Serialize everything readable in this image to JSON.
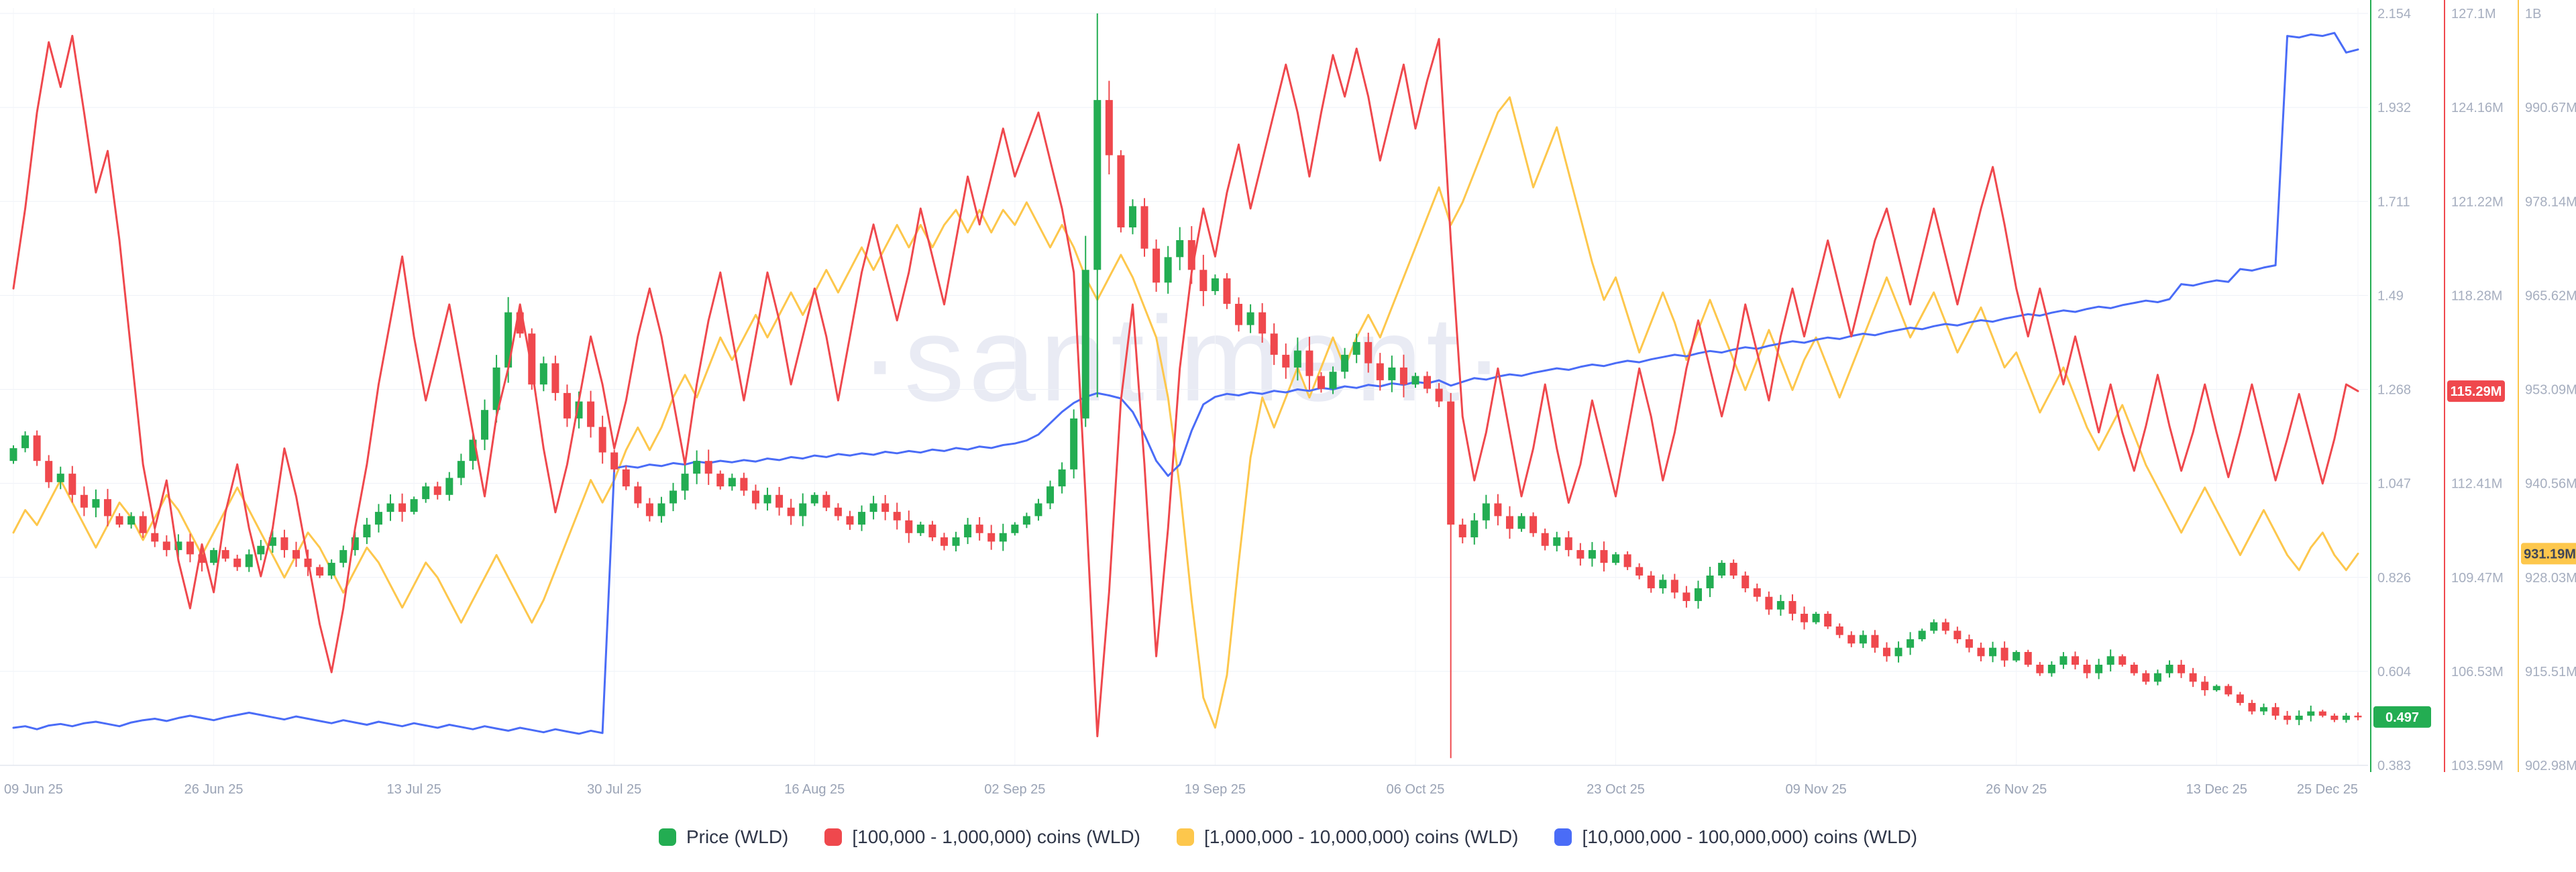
{
  "watermark": {
    "text": "·santiment·"
  },
  "legend": {
    "items": [
      {
        "label": "Price (WLD)",
        "color": "#23ad52"
      },
      {
        "label": "[100,000 - 1,000,000) coins (WLD)",
        "color": "#ef484d"
      },
      {
        "label": "[1,000,000 - 10,000,000) coins (WLD)",
        "color": "#fdc74c"
      },
      {
        "label": "[10,000,000 - 100,000,000) coins (WLD)",
        "color": "#4a6cf7"
      }
    ]
  },
  "colors": {
    "candle_up": "#23ad52",
    "candle_down": "#ef484d",
    "grid": "#eef1f7",
    "axis_baseline": "#e3e7ef",
    "axis_text": "#a6aebf",
    "date_text": "#9aa3b5",
    "watermark": "#e9ebf4"
  },
  "chart_data": {
    "type": "mixed",
    "x_axis": {
      "start_date": "09 Jun 25",
      "end_date": "25 Dec 25",
      "tick_labels": [
        "09 Jun 25",
        "26 Jun 25",
        "13 Jul 25",
        "30 Jul 25",
        "16 Aug 25",
        "02 Sep 25",
        "19 Sep 25",
        "06 Oct 25",
        "23 Oct 25",
        "09 Nov 25",
        "26 Nov 25",
        "13 Dec 25",
        "25 Dec 25"
      ],
      "tick_day_index": [
        0,
        17,
        34,
        51,
        68,
        85,
        102,
        119,
        136,
        153,
        170,
        187,
        199
      ],
      "total_days": 200
    },
    "axes": {
      "price": {
        "ticks": [
          "2.154",
          "1.932",
          "1.711",
          "1.49",
          "1.268",
          "1.047",
          "0.826",
          "0.604",
          "0.383"
        ],
        "ylim": [
          0.383,
          2.154
        ],
        "color": "#23ad52",
        "badge": {
          "text": "0.497",
          "value": 0.497,
          "bg": "#23ad52",
          "fg": "#ffffff"
        }
      },
      "supply_100k_1m": {
        "ticks": [
          "127.1M",
          "124.16M",
          "121.22M",
          "118.28M",
          "115.34M",
          "112.41M",
          "109.47M",
          "106.53M",
          "103.59M"
        ],
        "ylim": [
          103.59,
          127.1
        ],
        "color": "#ef484d",
        "badge": {
          "text": "115.29M",
          "value": 115.29,
          "bg": "#ef484d",
          "fg": "#ffffff"
        }
      },
      "supply_1m_10m": {
        "ticks": [
          "1B",
          "990.67M",
          "978.14M",
          "965.62M",
          "953.09M",
          "940.56M",
          "928.03M",
          "915.51M",
          "902.98M"
        ],
        "ylim": [
          902.98,
          1003.18
        ],
        "color": "#fdc74c",
        "badge": {
          "text": "931.19M",
          "value": 931.19,
          "bg": "#fdc74c",
          "fg": "#3f4657"
        }
      }
    },
    "series": [
      {
        "name": "Price (WLD)",
        "type": "candlestick",
        "axis": "price",
        "up_color": "#23ad52",
        "down_color": "#ef484d",
        "first_open": 1.1,
        "last_value_label": "0.497",
        "closes": [
          1.13,
          1.16,
          1.1,
          1.05,
          1.07,
          1.02,
          0.99,
          1.01,
          0.97,
          0.95,
          0.97,
          0.93,
          0.91,
          0.89,
          0.91,
          0.88,
          0.86,
          0.89,
          0.87,
          0.85,
          0.88,
          0.9,
          0.92,
          0.89,
          0.87,
          0.85,
          0.83,
          0.86,
          0.89,
          0.92,
          0.95,
          0.98,
          1.0,
          0.98,
          1.01,
          1.04,
          1.02,
          1.06,
          1.1,
          1.15,
          1.22,
          1.32,
          1.45,
          1.4,
          1.28,
          1.33,
          1.26,
          1.2,
          1.24,
          1.18,
          1.12,
          1.08,
          1.04,
          1.0,
          0.97,
          1.0,
          1.03,
          1.07,
          1.1,
          1.07,
          1.04,
          1.06,
          1.03,
          1.0,
          1.02,
          0.99,
          0.97,
          1.0,
          1.02,
          0.99,
          0.97,
          0.95,
          0.98,
          1.0,
          0.98,
          0.96,
          0.93,
          0.95,
          0.92,
          0.9,
          0.92,
          0.95,
          0.93,
          0.91,
          0.93,
          0.95,
          0.97,
          1.0,
          1.04,
          1.08,
          1.2,
          1.55,
          1.95,
          1.82,
          1.65,
          1.7,
          1.6,
          1.52,
          1.58,
          1.62,
          1.55,
          1.5,
          1.53,
          1.47,
          1.42,
          1.45,
          1.4,
          1.35,
          1.32,
          1.36,
          1.3,
          1.27,
          1.31,
          1.35,
          1.38,
          1.33,
          1.29,
          1.32,
          1.28,
          1.3,
          1.27,
          1.24,
          0.95,
          0.92,
          0.96,
          1.0,
          0.97,
          0.94,
          0.97,
          0.93,
          0.9,
          0.92,
          0.89,
          0.87,
          0.89,
          0.86,
          0.88,
          0.85,
          0.83,
          0.8,
          0.82,
          0.79,
          0.77,
          0.8,
          0.83,
          0.86,
          0.83,
          0.8,
          0.78,
          0.75,
          0.77,
          0.74,
          0.72,
          0.74,
          0.71,
          0.69,
          0.67,
          0.69,
          0.66,
          0.64,
          0.66,
          0.68,
          0.7,
          0.72,
          0.7,
          0.68,
          0.66,
          0.64,
          0.66,
          0.63,
          0.65,
          0.62,
          0.6,
          0.62,
          0.64,
          0.62,
          0.6,
          0.62,
          0.64,
          0.62,
          0.6,
          0.58,
          0.6,
          0.62,
          0.6,
          0.58,
          0.56,
          0.57,
          0.55,
          0.53,
          0.51,
          0.52,
          0.5,
          0.49,
          0.5,
          0.51,
          0.5,
          0.49,
          0.5,
          0.497
        ],
        "ohlc_overrides": {
          "91": [
            1.2,
            1.63,
            1.18,
            1.55
          ],
          "92": [
            1.55,
            2.154,
            1.25,
            1.95
          ],
          "122": [
            1.24,
            1.26,
            0.4,
            0.95
          ]
        }
      },
      {
        "name": "[100,000 - 1,000,000) coins (WLD)",
        "type": "line",
        "axis": "supply_100k_1m",
        "color": "#ef484d",
        "last_value_label": "115.29M",
        "values": [
          118.5,
          121.0,
          124.0,
          126.2,
          124.8,
          126.4,
          124.0,
          121.5,
          122.8,
          120.0,
          116.5,
          113.0,
          111.0,
          112.5,
          110.0,
          108.5,
          110.5,
          109.0,
          111.5,
          113.0,
          111.0,
          109.5,
          111.0,
          113.5,
          112.0,
          110.0,
          108.0,
          106.5,
          108.5,
          111.0,
          113.0,
          115.5,
          117.5,
          119.5,
          117.0,
          115.0,
          116.5,
          118.0,
          116.0,
          114.0,
          112.0,
          114.5,
          116.0,
          118.0,
          116.0,
          113.5,
          111.5,
          113.0,
          115.0,
          117.0,
          115.5,
          113.5,
          115.0,
          117.0,
          118.5,
          117.0,
          115.0,
          113.0,
          115.5,
          117.5,
          119.0,
          117.0,
          115.0,
          117.0,
          119.0,
          117.5,
          115.5,
          117.0,
          118.5,
          117.0,
          115.0,
          117.0,
          119.0,
          120.5,
          119.0,
          117.5,
          119.0,
          121.0,
          119.5,
          118.0,
          120.0,
          122.0,
          120.5,
          122.0,
          123.5,
          122.0,
          123.0,
          124.0,
          122.5,
          121.0,
          119.0,
          112.0,
          104.5,
          109.0,
          115.0,
          118.0,
          113.0,
          107.0,
          111.0,
          116.0,
          119.0,
          121.0,
          119.5,
          121.5,
          123.0,
          121.0,
          122.5,
          124.0,
          125.5,
          124.0,
          122.0,
          124.0,
          125.8,
          124.5,
          126.0,
          124.5,
          122.5,
          124.0,
          125.5,
          123.5,
          125.0,
          126.3,
          120.0,
          114.5,
          112.5,
          114.0,
          116.0,
          114.0,
          112.0,
          113.5,
          115.5,
          113.5,
          111.8,
          113.0,
          115.0,
          113.5,
          112.0,
          114.0,
          116.0,
          114.5,
          112.5,
          114.0,
          116.0,
          117.5,
          116.0,
          114.5,
          116.0,
          118.0,
          116.5,
          115.0,
          117.0,
          118.5,
          117.0,
          118.5,
          120.0,
          118.5,
          117.0,
          118.5,
          120.0,
          121.0,
          119.5,
          118.0,
          119.5,
          121.0,
          119.5,
          118.0,
          119.5,
          121.0,
          122.3,
          120.5,
          118.5,
          117.0,
          118.5,
          117.0,
          115.5,
          117.0,
          115.5,
          114.0,
          115.5,
          114.0,
          112.8,
          114.2,
          115.8,
          114.2,
          112.8,
          114.0,
          115.5,
          114.0,
          112.6,
          114.0,
          115.5,
          114.0,
          112.5,
          113.8,
          115.2,
          113.8,
          112.4,
          113.8,
          115.5,
          115.29
        ]
      },
      {
        "name": "[1,000,000 - 10,000,000) coins (WLD)",
        "type": "line",
        "axis": "supply_1m_10m",
        "color": "#fdc74c",
        "last_value_label": "931.19M",
        "values": [
          934,
          937,
          935,
          938,
          941,
          938,
          935,
          932,
          935,
          938,
          936,
          933,
          936,
          939,
          937,
          934,
          931,
          934,
          937,
          940,
          937,
          934,
          931,
          928,
          931,
          934,
          932,
          929,
          926,
          929,
          932,
          930,
          927,
          924,
          927,
          930,
          928,
          925,
          922,
          925,
          928,
          931,
          928,
          925,
          922,
          925,
          929,
          933,
          937,
          941,
          938,
          941,
          945,
          948,
          945,
          948,
          952,
          955,
          952,
          956,
          960,
          957,
          960,
          963,
          960,
          963,
          966,
          963,
          966,
          969,
          966,
          969,
          972,
          969,
          972,
          975,
          972,
          975,
          972,
          975,
          977,
          974,
          977,
          974,
          977,
          975,
          978,
          975,
          972,
          975,
          972,
          968,
          965,
          968,
          971,
          968,
          964,
          960,
          952,
          940,
          925,
          912,
          908,
          915,
          930,
          944,
          952,
          948,
          952,
          956,
          952,
          956,
          960,
          956,
          960,
          963,
          960,
          964,
          968,
          972,
          976,
          980,
          975,
          978,
          982,
          986,
          990,
          992,
          986,
          980,
          984,
          988,
          982,
          976,
          970,
          965,
          968,
          963,
          958,
          962,
          966,
          962,
          957,
          961,
          965,
          961,
          957,
          953,
          957,
          961,
          957,
          953,
          957,
          960,
          956,
          952,
          956,
          960,
          964,
          968,
          964,
          960,
          963,
          966,
          962,
          958,
          961,
          964,
          960,
          956,
          958,
          954,
          950,
          953,
          956,
          952,
          948,
          945,
          948,
          951,
          947,
          943,
          940,
          937,
          934,
          937,
          940,
          937,
          934,
          931,
          934,
          937,
          934,
          931,
          929,
          932,
          934,
          931,
          929,
          931.19
        ]
      },
      {
        "name": "[10,000,000 - 100,000,000) coins (WLD)",
        "type": "line",
        "axis": "hidden",
        "color": "#4a6cf7",
        "axis_hidden": true,
        "values_normalized": [
          0.05,
          0.052,
          0.048,
          0.053,
          0.055,
          0.052,
          0.056,
          0.058,
          0.055,
          0.052,
          0.057,
          0.06,
          0.062,
          0.059,
          0.063,
          0.066,
          0.063,
          0.06,
          0.064,
          0.067,
          0.07,
          0.067,
          0.064,
          0.061,
          0.065,
          0.062,
          0.059,
          0.056,
          0.06,
          0.057,
          0.054,
          0.058,
          0.055,
          0.052,
          0.056,
          0.053,
          0.05,
          0.054,
          0.051,
          0.048,
          0.052,
          0.049,
          0.046,
          0.05,
          0.047,
          0.044,
          0.048,
          0.045,
          0.042,
          0.046,
          0.043,
          0.395,
          0.398,
          0.396,
          0.4,
          0.398,
          0.402,
          0.4,
          0.404,
          0.402,
          0.405,
          0.403,
          0.406,
          0.404,
          0.408,
          0.406,
          0.41,
          0.408,
          0.412,
          0.41,
          0.414,
          0.412,
          0.415,
          0.413,
          0.417,
          0.415,
          0.418,
          0.416,
          0.42,
          0.418,
          0.422,
          0.42,
          0.424,
          0.422,
          0.426,
          0.428,
          0.432,
          0.44,
          0.455,
          0.47,
          0.482,
          0.49,
          0.495,
          0.492,
          0.488,
          0.47,
          0.44,
          0.405,
          0.385,
          0.4,
          0.445,
          0.48,
          0.49,
          0.494,
          0.492,
          0.496,
          0.494,
          0.498,
          0.496,
          0.5,
          0.498,
          0.502,
          0.5,
          0.504,
          0.502,
          0.506,
          0.504,
          0.508,
          0.506,
          0.51,
          0.508,
          0.512,
          0.505,
          0.51,
          0.515,
          0.513,
          0.517,
          0.52,
          0.518,
          0.522,
          0.525,
          0.528,
          0.526,
          0.53,
          0.533,
          0.531,
          0.535,
          0.538,
          0.536,
          0.54,
          0.543,
          0.546,
          0.544,
          0.548,
          0.551,
          0.549,
          0.553,
          0.556,
          0.554,
          0.558,
          0.561,
          0.564,
          0.562,
          0.566,
          0.569,
          0.567,
          0.571,
          0.574,
          0.572,
          0.576,
          0.579,
          0.582,
          0.58,
          0.584,
          0.587,
          0.585,
          0.589,
          0.592,
          0.59,
          0.594,
          0.597,
          0.6,
          0.598,
          0.602,
          0.605,
          0.603,
          0.607,
          0.61,
          0.608,
          0.612,
          0.615,
          0.618,
          0.616,
          0.62,
          0.64,
          0.638,
          0.642,
          0.645,
          0.643,
          0.66,
          0.658,
          0.662,
          0.665,
          0.97,
          0.968,
          0.972,
          0.97,
          0.974,
          0.948,
          0.952
        ]
      }
    ]
  }
}
